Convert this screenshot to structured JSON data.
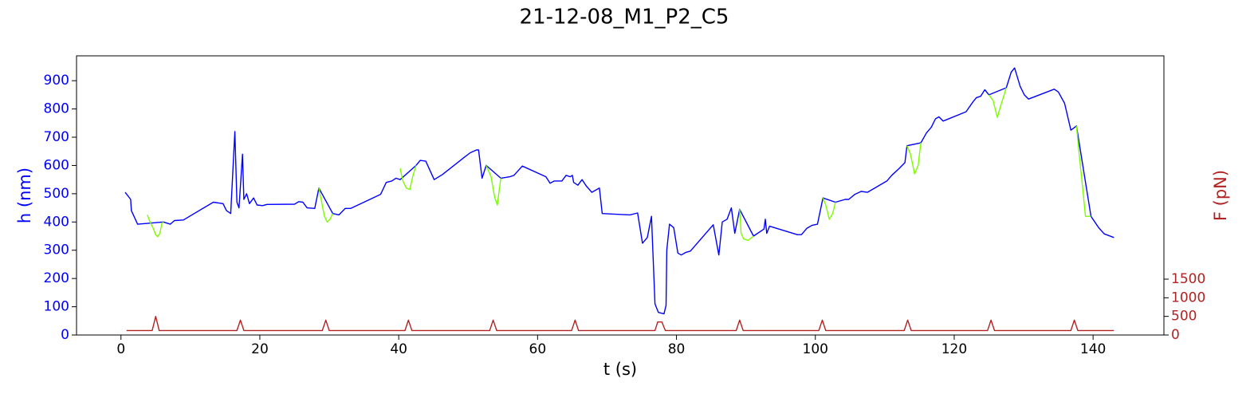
{
  "chart_data": {
    "type": "line",
    "title": "21-12-08_M1_P2_C5",
    "x_label": "t (s)",
    "y_label": "h (nm)",
    "y2_label": "F (pN)",
    "xlim": [
      -6.4,
      150.2
    ],
    "xticks": [
      0,
      20,
      40,
      60,
      80,
      100,
      120,
      140
    ],
    "ylim": [
      0,
      988
    ],
    "yticks": [
      0,
      100,
      200,
      300,
      400,
      500,
      600,
      700,
      800,
      900
    ],
    "y2lim": [
      0,
      7500
    ],
    "y2ticks": [
      0,
      500,
      1000,
      1500
    ],
    "y_color": "#0000ff",
    "y2_color": "#b22222",
    "series": [
      {
        "color": "#0000ff",
        "x": [
          0.6,
          1.4,
          1.5,
          2.4,
          3.8,
          6.1,
          7.1,
          7.7,
          9.0,
          13.3,
          14.7,
          15.2,
          15.8,
          16.4,
          16.7,
          17.0,
          17.5,
          17.7,
          18.1,
          18.5,
          19.1,
          19.6,
          20.4,
          21.0,
          25.0,
          25.6,
          26.2,
          26.8,
          27.9,
          28.5,
          30.5,
          31.4,
          32.3,
          33.1,
          37.4,
          38.2,
          39.0,
          39.6,
          40.2,
          42.5,
          43.1,
          43.9,
          45.1,
          46.3,
          49.5,
          50.3,
          51.2,
          51.5,
          52.0,
          52.6,
          54.7,
          56.0,
          56.6,
          57.8,
          61.2,
          61.8,
          62.4,
          63.5,
          64.1,
          64.7,
          65.0,
          65.2,
          65.8,
          66.4,
          67.0,
          67.8,
          68.9,
          69.3,
          73.3,
          74.4,
          75.1,
          75.8,
          76.4,
          76.9,
          77.4,
          78.2,
          78.5,
          78.6,
          79.0,
          79.6,
          80.2,
          80.7,
          81.3,
          82.0,
          85.3,
          86.1,
          86.6,
          87.3,
          87.9,
          88.4,
          89.1,
          91.1,
          92.6,
          92.8,
          93.0,
          93.4,
          97.4,
          98.0,
          98.8,
          99.5,
          100.3,
          101.1,
          102.9,
          104.3,
          104.8,
          105.7,
          106.6,
          107.5,
          110.3,
          111.0,
          112.1,
          112.9,
          113.2,
          115.2,
          116.0,
          116.7,
          117.3,
          117.8,
          118.4,
          121.7,
          122.7,
          123.2,
          123.8,
          124.4,
          125.0,
          127.5,
          128.2,
          128.7,
          129.5,
          130.1,
          130.7,
          134.4,
          135.0,
          135.9,
          136.8,
          137.6,
          139.7,
          140.8,
          141.6,
          143.0
        ],
        "values": [
          505,
          480,
          440,
          392,
          395,
          400,
          392,
          405,
          407,
          470,
          465,
          440,
          430,
          720,
          470,
          450,
          640,
          480,
          500,
          465,
          485,
          460,
          458,
          462,
          463,
          472,
          470,
          450,
          448,
          520,
          430,
          425,
          448,
          448,
          498,
          540,
          545,
          555,
          550,
          600,
          618,
          615,
          550,
          568,
          630,
          645,
          655,
          655,
          555,
          600,
          555,
          560,
          565,
          598,
          560,
          537,
          545,
          545,
          565,
          560,
          565,
          540,
          530,
          550,
          528,
          505,
          520,
          430,
          425,
          432,
          325,
          345,
          420,
          110,
          80,
          75,
          105,
          300,
          392,
          380,
          290,
          283,
          292,
          297,
          390,
          283,
          400,
          410,
          450,
          360,
          445,
          350,
          375,
          410,
          360,
          385,
          355,
          355,
          378,
          388,
          392,
          485,
          470,
          480,
          480,
          498,
          508,
          505,
          545,
          565,
          590,
          610,
          670,
          680,
          715,
          735,
          765,
          772,
          757,
          790,
          825,
          840,
          845,
          868,
          850,
          875,
          930,
          945,
          880,
          850,
          835,
          870,
          860,
          820,
          725,
          740,
          420,
          380,
          358,
          345
        ]
      },
      {
        "color": "#7cfc00",
        "x": [
          3.8,
          4.2,
          4.7,
          5.0,
          5.3,
          5.6,
          5.9,
          6.1,
          null,
          28.5,
          28.9,
          29.3,
          29.7,
          30.1,
          30.5,
          null,
          40.2,
          40.6,
          41.1,
          41.6,
          42.0,
          42.5,
          null,
          52.6,
          53.3,
          53.8,
          54.2,
          54.7,
          null,
          89.1,
          89.3,
          89.7,
          90.3,
          91.1,
          null,
          101.1,
          101.5,
          102.0,
          102.5,
          102.9,
          null,
          113.2,
          113.7,
          114.3,
          114.8,
          115.2,
          null,
          125.0,
          125.6,
          126.2,
          126.8,
          127.5,
          null,
          137.6,
          138.0,
          138.5,
          138.9,
          139.3,
          139.7
        ],
        "values": [
          425,
          400,
          375,
          355,
          348,
          360,
          395,
          400,
          null,
          520,
          470,
          420,
          400,
          410,
          430,
          null,
          590,
          545,
          520,
          515,
          560,
          600,
          null,
          600,
          560,
          490,
          460,
          555,
          null,
          445,
          360,
          340,
          335,
          350,
          null,
          485,
          460,
          410,
          430,
          470,
          null,
          670,
          640,
          570,
          600,
          680,
          null,
          850,
          830,
          770,
          820,
          875,
          null,
          740,
          640,
          520,
          420,
          420,
          420
        ]
      },
      {
        "color": "#b22222",
        "axis": "y2",
        "x": [
          0.8,
          4.5,
          5,
          5.5,
          16.7,
          17.2,
          17.7,
          29,
          29.5,
          30,
          40.9,
          41.4,
          41.9,
          53.1,
          53.6,
          54.1,
          64.9,
          65.4,
          65.9,
          76.9,
          77.3,
          77.9,
          78.4,
          88.6,
          89.1,
          89.6,
          100.5,
          101,
          101.5,
          112.8,
          113.3,
          113.8,
          124.8,
          125.3,
          125.8,
          136.8,
          137.3,
          137.8,
          143
        ],
        "values": [
          120,
          120,
          500,
          120,
          120,
          400,
          120,
          120,
          400,
          120,
          120,
          400,
          120,
          120,
          400,
          120,
          120,
          400,
          120,
          120,
          350,
          350,
          120,
          120,
          400,
          120,
          120,
          400,
          120,
          120,
          400,
          120,
          120,
          400,
          120,
          120,
          400,
          120,
          120
        ]
      }
    ]
  }
}
